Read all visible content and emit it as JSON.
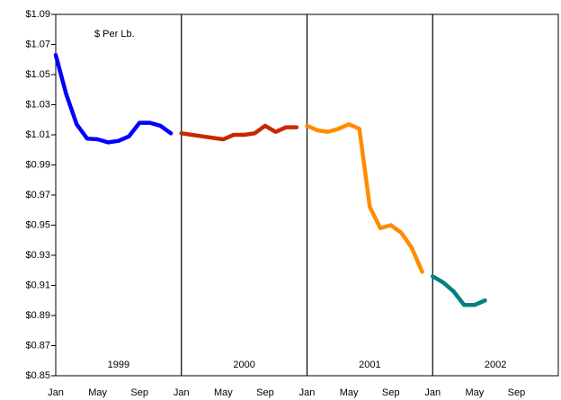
{
  "chart_data": {
    "type": "line",
    "annotation": "$ Per Lb.",
    "year_labels": [
      "1999",
      "2000",
      "2001",
      "2002"
    ],
    "categories": [
      "Jan",
      null,
      null,
      null,
      "May",
      null,
      null,
      null,
      "Sep",
      null,
      null,
      null,
      "Jan",
      null,
      null,
      null,
      "May",
      null,
      null,
      null,
      "Sep",
      null,
      null,
      null,
      "Jan",
      null,
      null,
      null,
      "May",
      null,
      null,
      null,
      "Sep",
      null,
      null,
      null,
      "Jan",
      null,
      null,
      null,
      "May",
      null,
      null,
      null,
      "Sep",
      null,
      null,
      null
    ],
    "series": [
      {
        "name": "1999",
        "color": "#0000ff",
        "values": [
          1.063,
          1.037,
          1.017,
          1.0075,
          1.007,
          1.005,
          1.006,
          1.009,
          1.018,
          1.018,
          1.016,
          1.011,
          null,
          null,
          null,
          null,
          null,
          null,
          null,
          null,
          null,
          null,
          null,
          null,
          null,
          null,
          null,
          null,
          null,
          null,
          null,
          null,
          null,
          null,
          null,
          null,
          null,
          null,
          null,
          null,
          null,
          null,
          null,
          null,
          null,
          null,
          null,
          null
        ]
      },
      {
        "name": "2000",
        "color": "#c82800",
        "values": [
          null,
          null,
          null,
          null,
          null,
          null,
          null,
          null,
          null,
          null,
          null,
          null,
          1.011,
          1.01,
          1.009,
          1.008,
          1.007,
          1.01,
          1.01,
          1.011,
          1.016,
          1.012,
          1.015,
          1.015,
          null,
          null,
          null,
          null,
          null,
          null,
          null,
          null,
          null,
          null,
          null,
          null,
          null,
          null,
          null,
          null,
          null,
          null,
          null,
          null,
          null,
          null,
          null,
          null
        ]
      },
      {
        "name": "2001",
        "color": "#ff8c00",
        "values": [
          null,
          null,
          null,
          null,
          null,
          null,
          null,
          null,
          null,
          null,
          null,
          null,
          null,
          null,
          null,
          null,
          null,
          null,
          null,
          null,
          null,
          null,
          null,
          null,
          1.016,
          1.013,
          1.012,
          1.014,
          1.017,
          1.014,
          0.962,
          0.948,
          0.95,
          0.945,
          0.935,
          0.919,
          null,
          null,
          null,
          null,
          null,
          null,
          null,
          null,
          null,
          null,
          null,
          null
        ]
      },
      {
        "name": "2002",
        "color": "#008080",
        "values": [
          null,
          null,
          null,
          null,
          null,
          null,
          null,
          null,
          null,
          null,
          null,
          null,
          null,
          null,
          null,
          null,
          null,
          null,
          null,
          null,
          null,
          null,
          null,
          null,
          null,
          null,
          null,
          null,
          null,
          null,
          null,
          null,
          null,
          null,
          null,
          null,
          0.916,
          0.912,
          0.906,
          0.897,
          0.897,
          0.9,
          null,
          null,
          null,
          null,
          null,
          null
        ]
      }
    ],
    "ylim": [
      0.85,
      1.09
    ],
    "yticks": [
      {
        "value": 0.85,
        "label": "$0.85"
      },
      {
        "value": 0.87,
        "label": "$0.87"
      },
      {
        "value": 0.89,
        "label": "$0.89"
      },
      {
        "value": 0.91,
        "label": "$0.91"
      },
      {
        "value": 0.93,
        "label": "$0.93"
      },
      {
        "value": 0.95,
        "label": "$0.95"
      },
      {
        "value": 0.97,
        "label": "$0.97"
      },
      {
        "value": 0.99,
        "label": "$0.99"
      },
      {
        "value": 1.01,
        "label": "$1.01"
      },
      {
        "value": 1.03,
        "label": "$1.03"
      },
      {
        "value": 1.05,
        "label": "$1.05"
      },
      {
        "value": 1.07,
        "label": "$1.07"
      },
      {
        "value": 1.09,
        "label": "$1.09"
      }
    ],
    "grid": false
  }
}
